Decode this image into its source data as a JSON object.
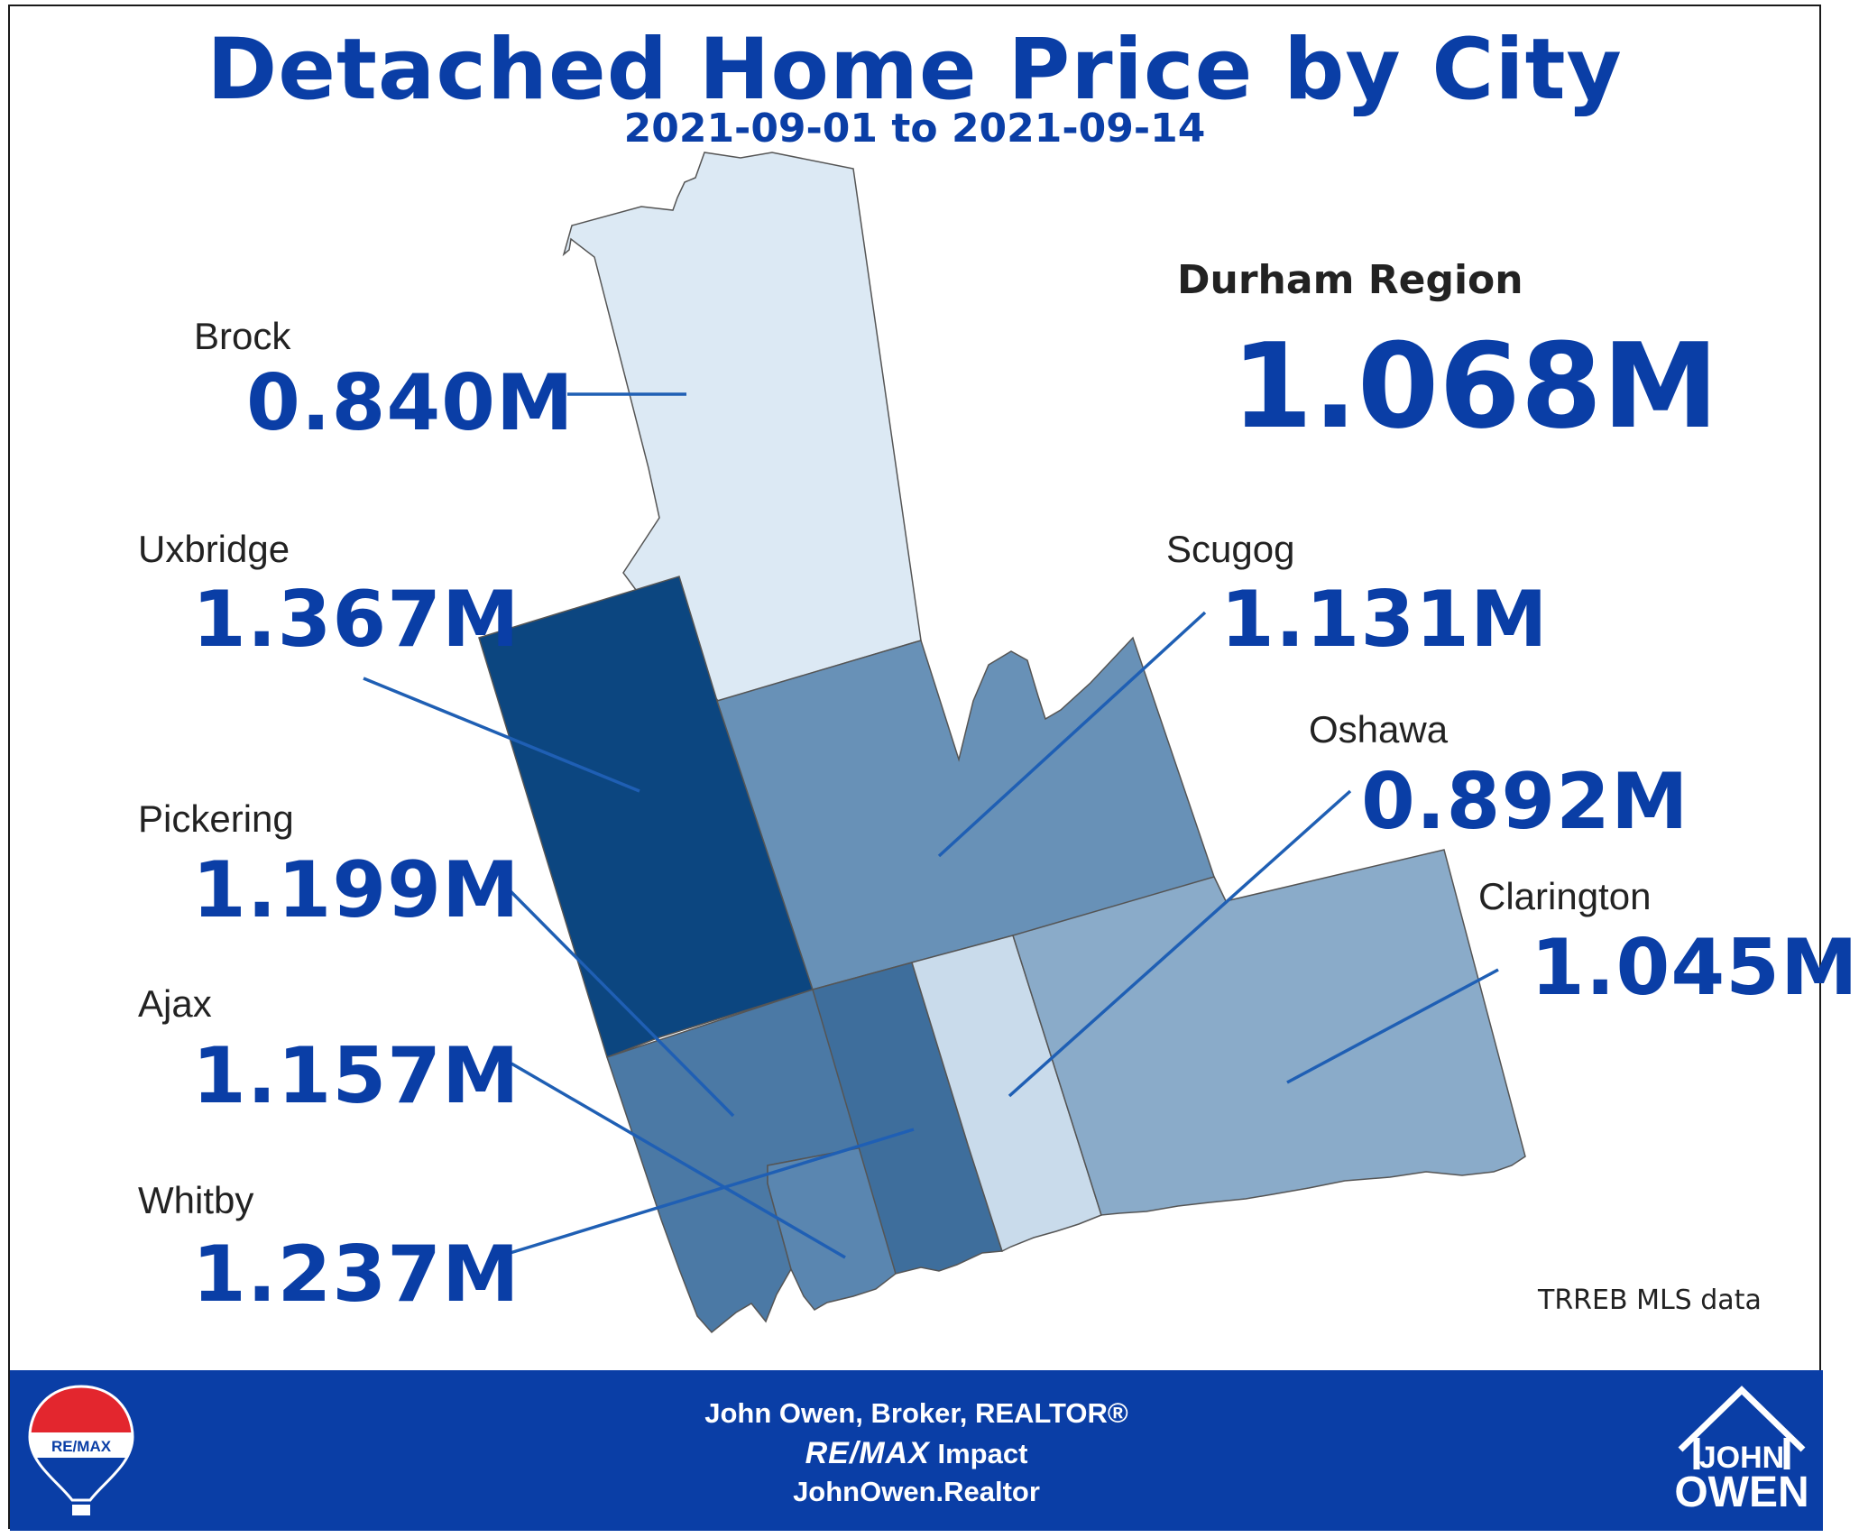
{
  "title": "Detached Home Price by City",
  "subtitle": "2021-09-01 to 2021-09-14",
  "region": {
    "name": "Durham Region",
    "value": "1.068M"
  },
  "source": "TRREB MLS data",
  "cities": [
    {
      "key": "brock",
      "name": "Brock",
      "value": "0.840M",
      "price_m": 0.84,
      "fill": "#dce9f4"
    },
    {
      "key": "uxbridge",
      "name": "Uxbridge",
      "value": "1.367M",
      "price_m": 1.367,
      "fill": "#0c4680"
    },
    {
      "key": "pickering",
      "name": "Pickering",
      "value": "1.199M",
      "price_m": 1.199,
      "fill": "#4b79a5"
    },
    {
      "key": "ajax",
      "name": "Ajax",
      "value": "1.157M",
      "price_m": 1.157,
      "fill": "#5a86b0"
    },
    {
      "key": "whitby",
      "name": "Whitby",
      "value": "1.237M",
      "price_m": 1.237,
      "fill": "#3e6e9c"
    },
    {
      "key": "scugog",
      "name": "Scugog",
      "value": "1.131M",
      "price_m": 1.131,
      "fill": "#6891b7"
    },
    {
      "key": "oshawa",
      "name": "Oshawa",
      "value": "0.892M",
      "price_m": 0.892,
      "fill": "#c9dbeb"
    },
    {
      "key": "clarington",
      "name": "Clarington",
      "value": "1.045M",
      "price_m": 1.045,
      "fill": "#8aabc9"
    }
  ],
  "colors": {
    "accent": "#0a3ea6",
    "leader_line": "#1f5fb4",
    "border": "#555555"
  },
  "footer": {
    "line1": "John Owen, Broker, REALTOR®",
    "line2_brand": "RE/MAX",
    "line2_rest": "Impact",
    "line3": "JohnOwen.Realtor",
    "balloon_text": "RE/MAX",
    "logo_line1": "JOHN",
    "logo_line2": "OWEN",
    "balloon_icon": "remax-balloon-icon",
    "house_icon": "house-logo-icon"
  }
}
